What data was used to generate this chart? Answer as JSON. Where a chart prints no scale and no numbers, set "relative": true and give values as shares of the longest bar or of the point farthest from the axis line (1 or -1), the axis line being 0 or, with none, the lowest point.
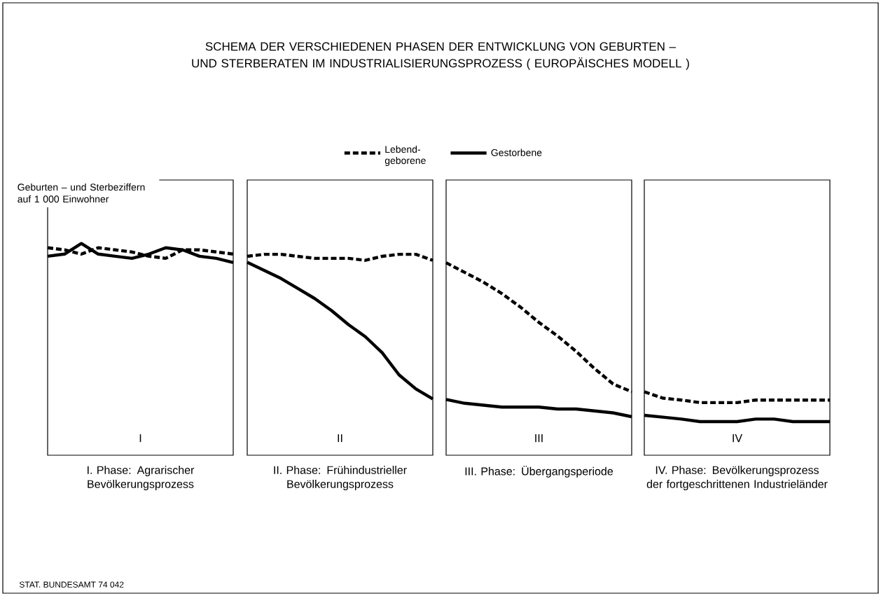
{
  "chart_data": [
    {
      "type": "line",
      "relative": true,
      "title": "SCHEMA DER VERSCHIEDENEN PHASEN DER ENTWICKLUNG VON GEBURTEN – UND STERBERATEN IM INDUSTRIALISIERUNGSPROZESS ( EUROPÄISCHES MODELL )",
      "ylabel": "Geburten – und Sterbeziffern auf 1 000 Einwohner",
      "xlabel": "I. Phase: Agrarischer Bevölkerungsprozess",
      "annotations": [
        "I",
        "STAT. BUNDESAMT 74 042"
      ],
      "categories": [
        null,
        null,
        null,
        null,
        null,
        null,
        null,
        null,
        null,
        null,
        null,
        null
      ],
      "series": [
        {
          "color": "#000000",
          "line_style": "dashed",
          "values": [
            0.98,
            0.97,
            0.95,
            0.98,
            0.97,
            0.96,
            0.94,
            0.93,
            0.97,
            0.97,
            0.96,
            0.95
          ]
        },
        {
          "color": "#000000",
          "line_style": "solid",
          "values": [
            0.94,
            0.95,
            1,
            0.95,
            0.94,
            0.93,
            0.95,
            0.98,
            0.97,
            0.94,
            0.93,
            0.91
          ]
        }
      ]
    },
    {
      "type": "line",
      "relative": true,
      "xlabel": "II. Phase: Frühindustrieller Bevölkerungsprozess",
      "annotations": [
        "II"
      ],
      "legend": "top",
      "categories": [
        null,
        null,
        null,
        null,
        null,
        null,
        null,
        null,
        null,
        null,
        null,
        null
      ],
      "series": [
        {
          "name": "Lebend-geborene",
          "color": "#000000",
          "line_style": "dashed",
          "values": [
            0.99,
            1,
            1,
            0.99,
            0.98,
            0.98,
            0.98,
            0.97,
            0.99,
            1,
            1,
            0.97
          ]
        },
        {
          "name": "Gestorbene",
          "color": "#000000",
          "line_style": "solid",
          "values": [
            0.96,
            0.92,
            0.88,
            0.83,
            0.78,
            0.72,
            0.65,
            0.59,
            0.51,
            0.4,
            0.33,
            0.28
          ]
        }
      ]
    },
    {
      "type": "line",
      "relative": true,
      "xlabel": "III. Phase: Übergangsperiode",
      "annotations": [
        "III"
      ],
      "categories": [
        null,
        null,
        null,
        null,
        null,
        null,
        null,
        null,
        null,
        null,
        null
      ],
      "series": [
        {
          "color": "#000000",
          "line_style": "dashed",
          "values": [
            1,
            0.95,
            0.9,
            0.84,
            0.77,
            0.69,
            0.62,
            0.54,
            0.45,
            0.37,
            0.33
          ]
        },
        {
          "color": "#000000",
          "line_style": "solid",
          "values": [
            0.29,
            0.27,
            0.26,
            0.25,
            0.25,
            0.25,
            0.24,
            0.24,
            0.23,
            0.22,
            0.2
          ]
        }
      ]
    },
    {
      "type": "line",
      "relative": true,
      "xlabel": "IV. Phase: Bevölkerungsprozess der fortgeschrittenen Industrieländer",
      "annotations": [
        "IV"
      ],
      "categories": [
        null,
        null,
        null,
        null,
        null,
        null,
        null,
        null,
        null,
        null,
        null
      ],
      "series": [
        {
          "color": "#000000",
          "line_style": "dashed",
          "values": [
            1,
            0.9,
            0.87,
            0.83,
            0.83,
            0.83,
            0.87,
            0.87,
            0.87,
            0.87,
            0.87
          ]
        },
        {
          "color": "#000000",
          "line_style": "solid",
          "values": [
            0.63,
            0.6,
            0.57,
            0.53,
            0.53,
            0.53,
            0.57,
            0.57,
            0.53,
            0.53,
            0.53
          ]
        }
      ]
    }
  ]
}
